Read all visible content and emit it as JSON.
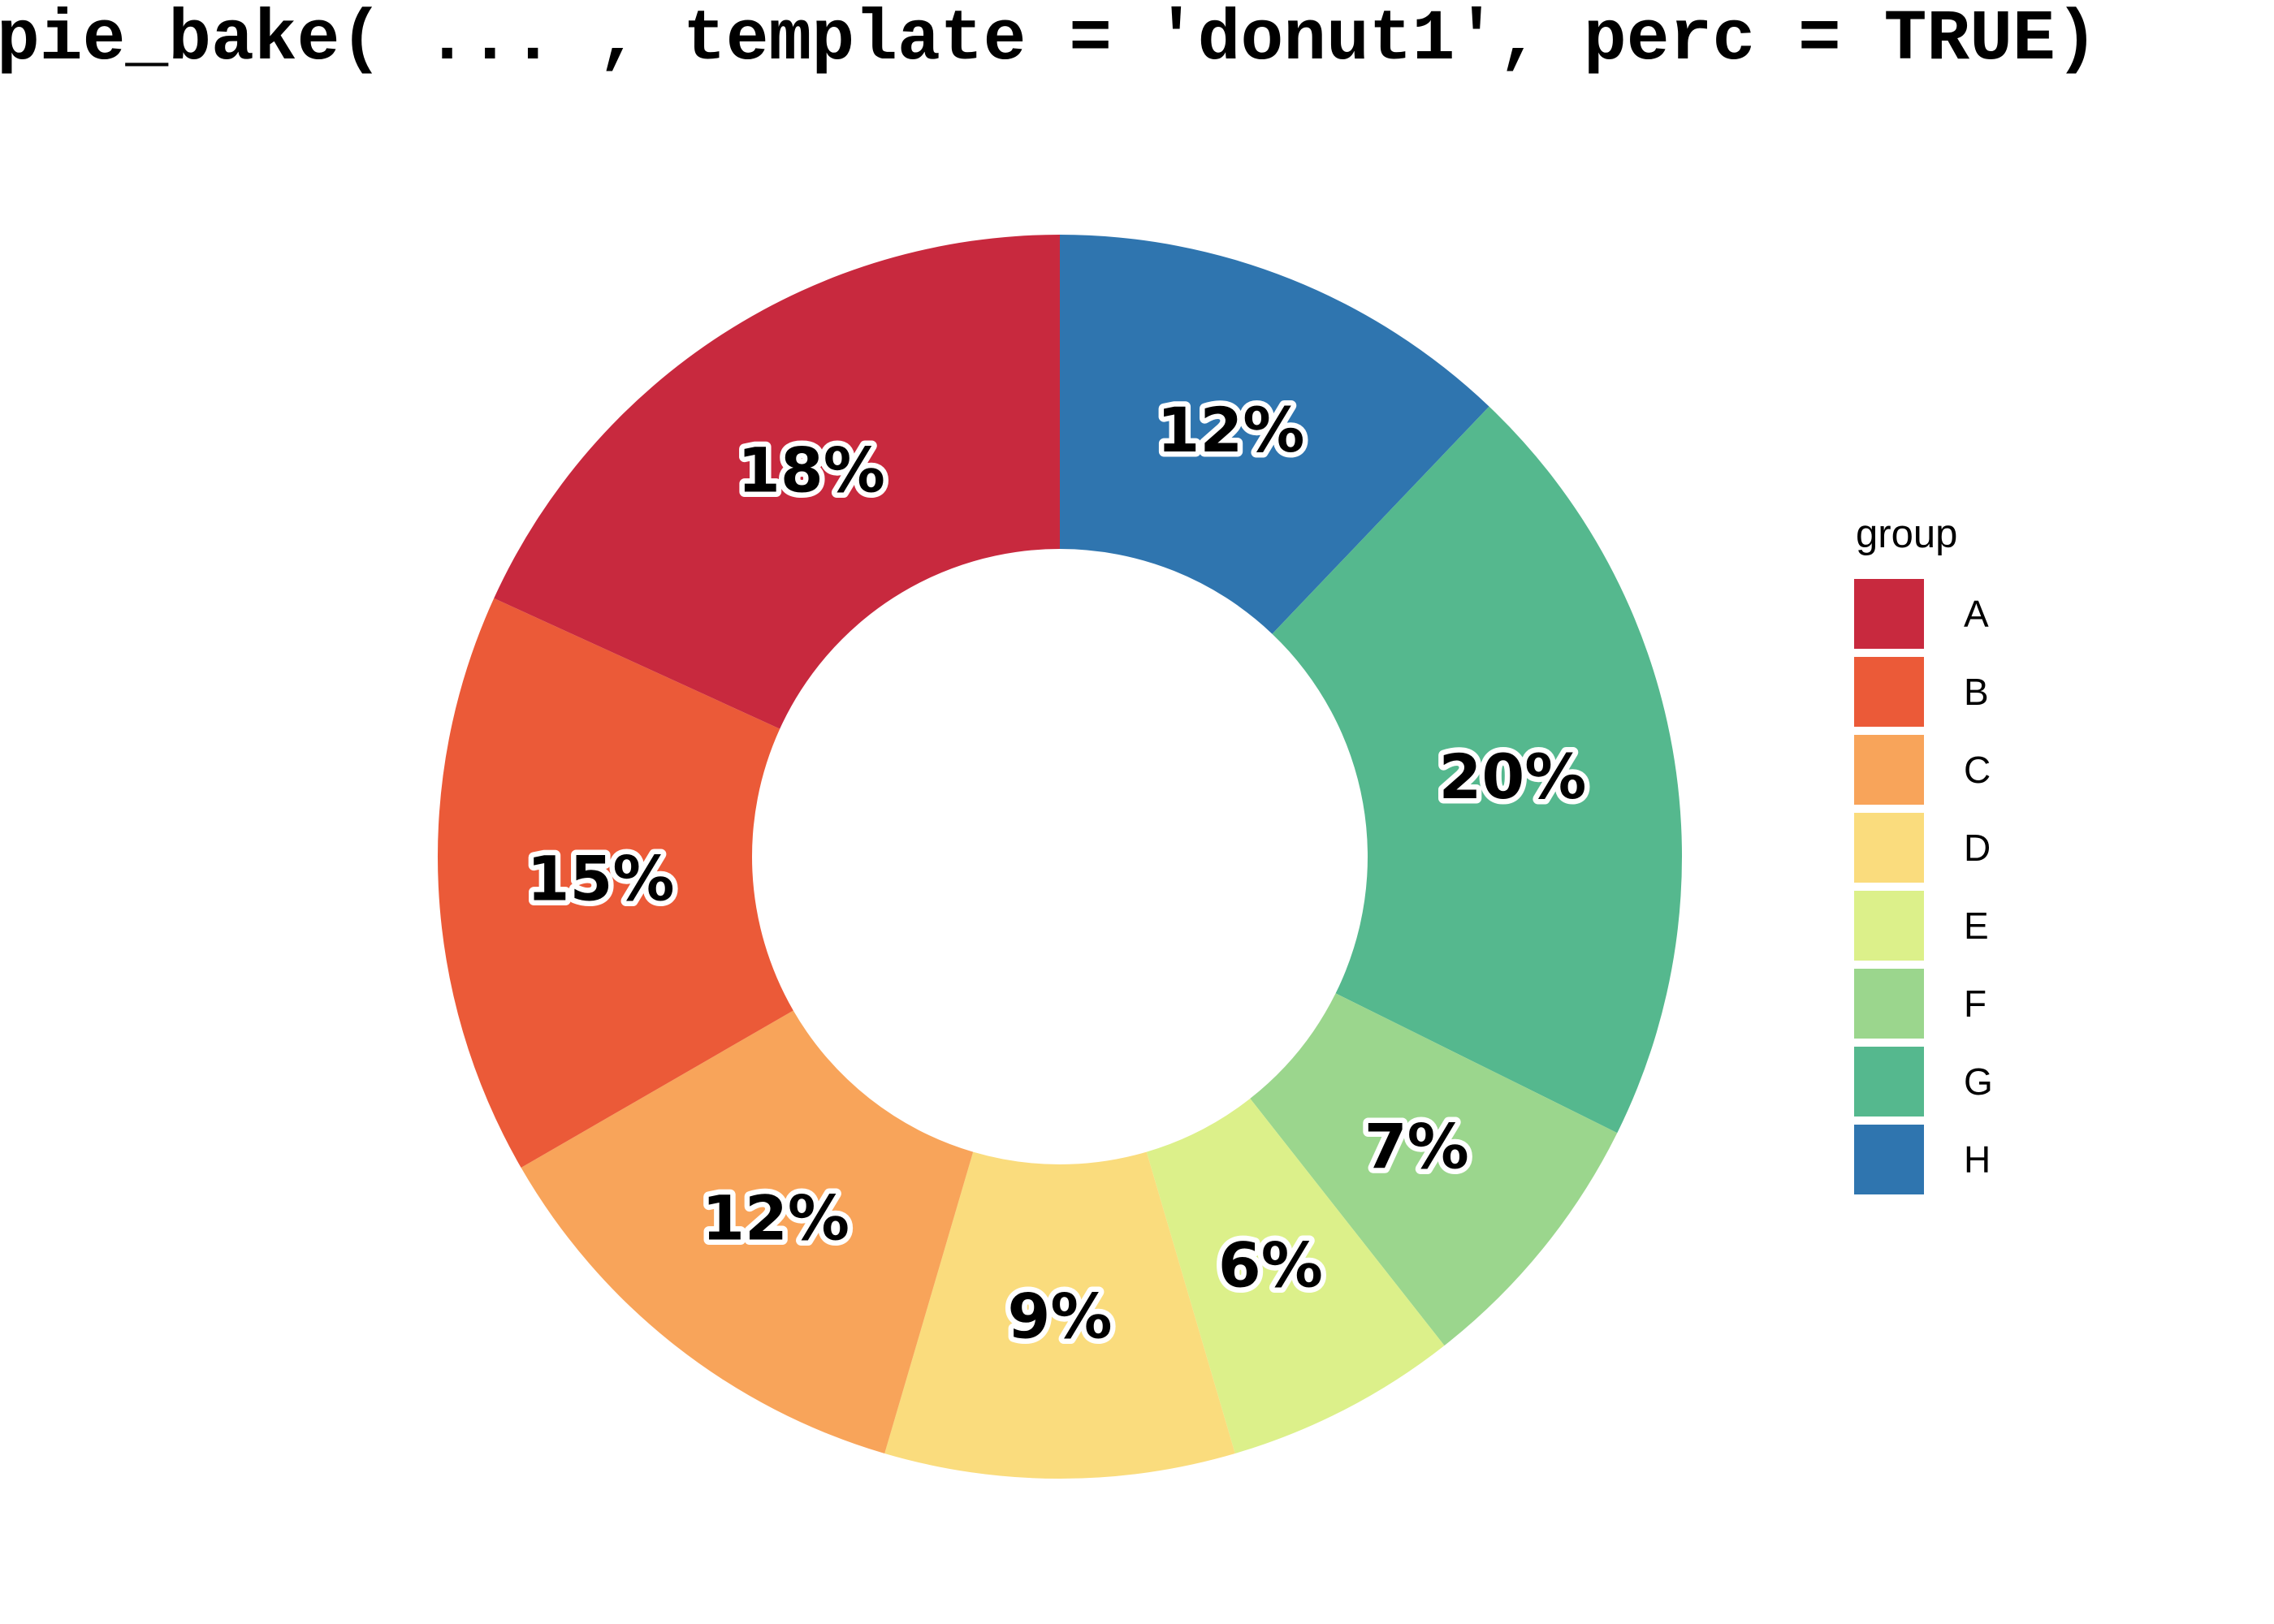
{
  "title": {
    "text": "pie_bake( ... , template = 'donut1', perc = TRUE)"
  },
  "legend": {
    "title": "group",
    "items": [
      {
        "label": "A",
        "color": "#C8293E"
      },
      {
        "label": "B",
        "color": "#EB5A38"
      },
      {
        "label": "C",
        "color": "#F8A45A"
      },
      {
        "label": "D",
        "color": "#FADC7D"
      },
      {
        "label": "E",
        "color": "#DCF08A"
      },
      {
        "label": "F",
        "color": "#9BD68D"
      },
      {
        "label": "G",
        "color": "#55B88E"
      },
      {
        "label": "H",
        "color": "#2F75AF"
      }
    ]
  },
  "chart_data": {
    "type": "pie",
    "subtype": "donut",
    "title": "pie_bake( ... , template = 'donut1', perc = TRUE)",
    "categories": [
      "A",
      "B",
      "C",
      "D",
      "E",
      "F",
      "G",
      "H"
    ],
    "values": [
      18,
      15,
      12,
      9,
      6,
      7,
      20,
      12
    ],
    "unit": "percent",
    "slice_labels": [
      "18%",
      "15%",
      "12%",
      "9%",
      "6%",
      "7%",
      "20%",
      "12%"
    ],
    "colors": [
      "#C8293E",
      "#EB5A38",
      "#F8A45A",
      "#FADC7D",
      "#DCF08A",
      "#9BD68D",
      "#55B88E",
      "#2F75AF"
    ],
    "legend_title": "group",
    "legend_entries": [
      "A",
      "B",
      "C",
      "D",
      "E",
      "F",
      "G",
      "H"
    ],
    "layout": {
      "start_angle": "12-oclock",
      "clockwise_order": [
        "H",
        "G",
        "F",
        "E",
        "D",
        "C",
        "B",
        "A"
      ],
      "inner_radius_ratio": 0.495,
      "legend_position": "right",
      "slice_label_style": "horizontal black bold text with white outline, placed at mid-radius",
      "grid": "off",
      "axes": "none"
    }
  }
}
